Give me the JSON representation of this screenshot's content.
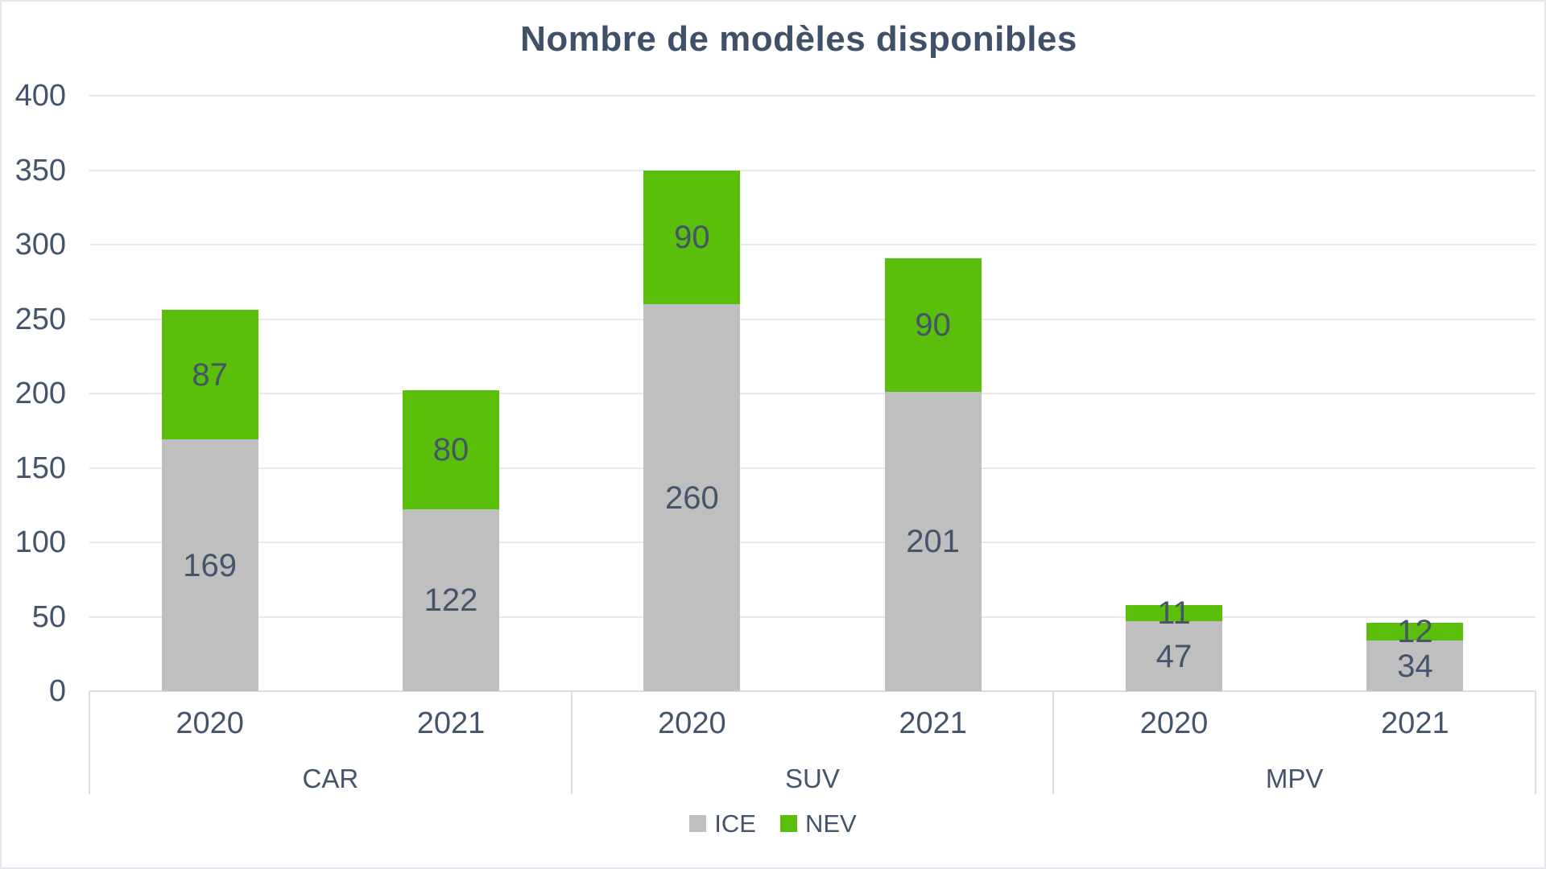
{
  "chart_data": {
    "type": "bar",
    "stacked": true,
    "title": "Nombre de modèles disponibles",
    "group_labels": [
      "CAR",
      "SUV",
      "MPV"
    ],
    "categories": [
      "2020",
      "2021",
      "2020",
      "2021",
      "2020",
      "2021"
    ],
    "series": [
      {
        "name": "ICE",
        "color": "#BFBFBF",
        "values": [
          169,
          122,
          260,
          201,
          47,
          34
        ]
      },
      {
        "name": "NEV",
        "color": "#5ABE0A",
        "values": [
          87,
          80,
          90,
          90,
          11,
          12
        ]
      }
    ],
    "y_ticks": [
      "0",
      "50",
      "100",
      "150",
      "200",
      "250",
      "300",
      "350",
      "400"
    ],
    "ylim": [
      0,
      400
    ],
    "ytick_interval": 50,
    "grid": true,
    "legend_position": "bottom",
    "legend": [
      "ICE",
      "NEV"
    ]
  },
  "colors": {
    "text": "#44546A",
    "title": "#3E5169",
    "ice": "#BFBFBF",
    "nev": "#5ABE0A",
    "gridline": "#E6E9EC",
    "axis": "#D8DDE3",
    "background": "#FFFFFF",
    "border": "#E4E6E9"
  }
}
